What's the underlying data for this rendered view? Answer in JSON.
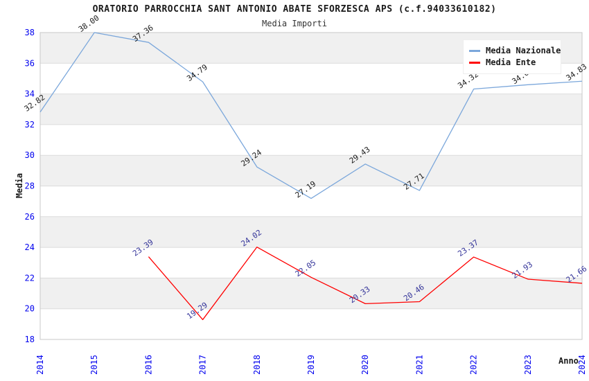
{
  "title": "ORATORIO PARROCCHIA SANT ANTONIO ABATE SFORZESCA APS (c.f.94033610182)",
  "subtitle": "Media Importi",
  "axes": {
    "y_title": "Media",
    "x_title": "Anno"
  },
  "legend": {
    "items": [
      {
        "label": "Media Nazionale",
        "color": "#7ba7db"
      },
      {
        "label": "Media Ente",
        "color": "#ff0000"
      }
    ]
  },
  "chart_data": {
    "type": "line",
    "title": "ORATORIO PARROCCHIA SANT ANTONIO ABATE SFORZESCA APS (c.f.94033610182)",
    "subtitle": "Media Importi",
    "xlabel": "Anno",
    "ylabel": "Media",
    "categories": [
      "2014",
      "2015",
      "2016",
      "2017",
      "2018",
      "2019",
      "2020",
      "2021",
      "2022",
      "2023",
      "2024"
    ],
    "ylim": [
      18,
      38
    ],
    "ytick_step": 2,
    "yticks": [
      18,
      20,
      22,
      24,
      26,
      28,
      30,
      32,
      34,
      36,
      38
    ],
    "series": [
      {
        "name": "Media Nazionale",
        "color": "#7ba7db",
        "label_color": "#1a1a1a",
        "x": [
          "2014",
          "2015",
          "2016",
          "2017",
          "2018",
          "2019",
          "2020",
          "2021",
          "2022",
          "2023",
          "2024"
        ],
        "values": [
          32.82,
          38.0,
          37.36,
          34.79,
          29.24,
          27.19,
          29.43,
          27.71,
          34.32,
          34.6,
          34.83
        ]
      },
      {
        "name": "Media Ente",
        "color": "#ff0000",
        "label_color": "#333399",
        "x": [
          "2016",
          "2017",
          "2018",
          "2019",
          "2020",
          "2021",
          "2022",
          "2023",
          "2024"
        ],
        "values": [
          23.39,
          19.29,
          24.02,
          22.05,
          20.33,
          20.46,
          23.37,
          21.93,
          21.66
        ]
      }
    ],
    "legend_position": "top-right",
    "grid": true,
    "band_colors": [
      "#ffffff",
      "#f0f0f0"
    ],
    "grid_color": "#dcdcdc",
    "border_color": "#c8c8c8",
    "tick_color": "#0000ee"
  }
}
